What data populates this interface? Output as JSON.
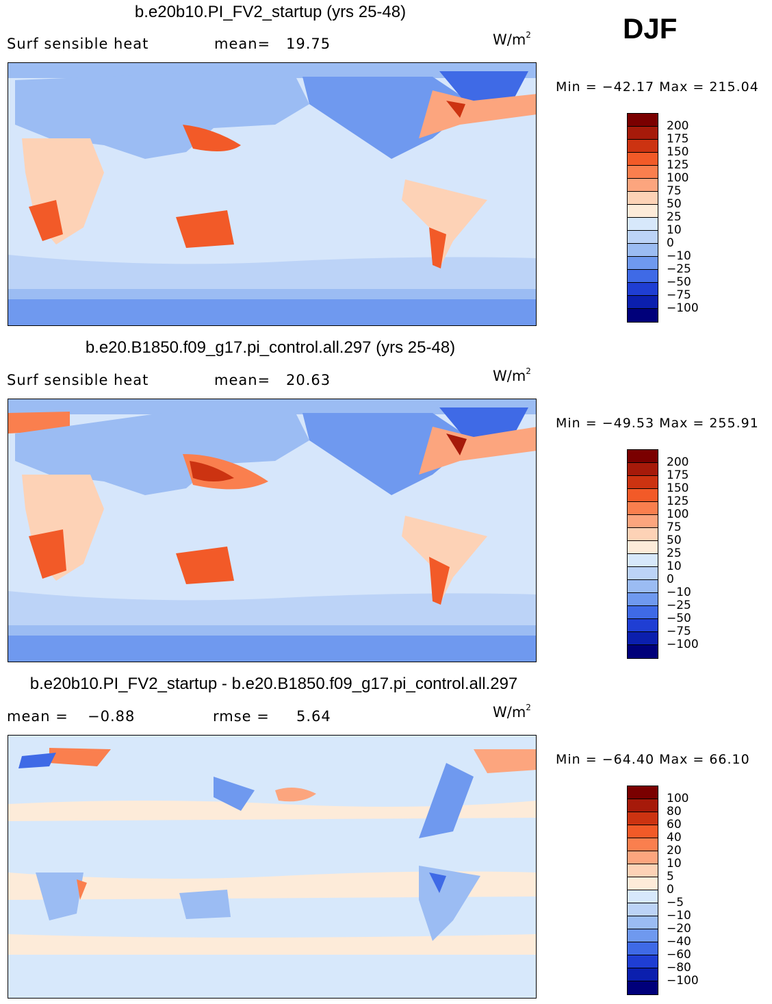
{
  "season": "DJF",
  "panels": [
    {
      "title": "b.e20b10.PI_FV2_startup (yrs 25-48)",
      "left_label": "Surf sensible heat",
      "stat_label": "mean=",
      "stat_value": "19.75",
      "units_base": "W/m",
      "units_exp": "2",
      "minmax": "Min = −42.17 Max = 215.04",
      "colorbar_labels": [
        "200",
        "175",
        "150",
        "125",
        "100",
        "75",
        "50",
        "25",
        "10",
        "0",
        "−10",
        "−25",
        "−50",
        "−75",
        "−100"
      ]
    },
    {
      "title": "b.e20.B1850.f09_g17.pi_control.all.297 (yrs 25-48)",
      "left_label": "Surf sensible heat",
      "stat_label": "mean=",
      "stat_value": "20.63",
      "units_base": "W/m",
      "units_exp": "2",
      "minmax": "Min = −49.53 Max = 255.91",
      "colorbar_labels": [
        "200",
        "175",
        "150",
        "125",
        "100",
        "75",
        "50",
        "25",
        "10",
        "0",
        "−10",
        "−25",
        "−50",
        "−75",
        "−100"
      ]
    },
    {
      "title": "b.e20b10.PI_FV2_startup - b.e20.B1850.f09_g17.pi_control.all.297",
      "left_label": "mean =",
      "left_value": "−0.88",
      "stat_label": "rmse =",
      "stat_value": "5.64",
      "units_base": "W/m",
      "units_exp": "2",
      "minmax": "Min = −64.40 Max =  66.10",
      "colorbar_labels": [
        "100",
        "80",
        "60",
        "40",
        "20",
        "10",
        "5",
        "0",
        "−5",
        "−10",
        "−20",
        "−40",
        "−60",
        "−80",
        "−100"
      ]
    }
  ],
  "colors": [
    "#7a0000",
    "#a61a0a",
    "#cc3311",
    "#f25a28",
    "#fa7f4e",
    "#fca57e",
    "#fdd2b6",
    "#fdebd9",
    "#d7e8fb",
    "#bcd3f7",
    "#9bbcf3",
    "#6f99ef",
    "#3f6ae6",
    "#1f3ed3",
    "#0b1fae",
    "#00007a"
  ],
  "land_color": "#e8a070",
  "ocean_color": "#d6e6fb"
}
